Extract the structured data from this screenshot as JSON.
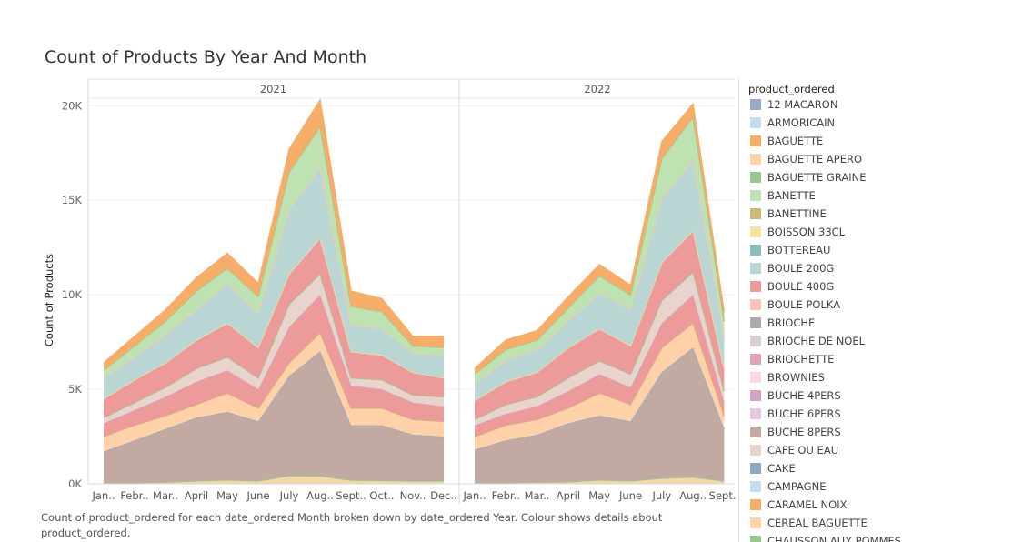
{
  "chart_data": {
    "type": "area",
    "stacked": true,
    "title": "Count of Products By Year And Month",
    "ylabel": "Count of Products",
    "xlabel": "",
    "ylim": [
      0,
      20400
    ],
    "yticks": [
      0,
      5000,
      10000,
      15000,
      20000
    ],
    "ytick_labels": [
      "0K",
      "5K",
      "10K",
      "15K",
      "20K"
    ],
    "grid": true,
    "legend_placement": "right",
    "legend_title": "product_ordered",
    "panels": [
      {
        "year": "2021",
        "months": [
          "Jan..",
          "Febr..",
          "Mar..",
          "April",
          "May",
          "June",
          "July",
          "Aug..",
          "Sept..",
          "Oct..",
          "Nov..",
          "Dec.."
        ],
        "totals": [
          6400,
          7800,
          9200,
          10900,
          12200,
          10600,
          17700,
          20300,
          10200,
          9800,
          7800,
          7800
        ],
        "boundaries": {
          "BAGUETTE": [
            50,
            60,
            80,
            150,
            200,
            150,
            430,
            420,
            190,
            170,
            140,
            150
          ],
          "BOULE 200G": [
            1700,
            2300,
            2900,
            3500,
            3800,
            3300,
            5700,
            7000,
            3100,
            3100,
            2600,
            2500
          ],
          "lower_mix": [
            2500,
            3100,
            3600,
            4200,
            4800,
            4000,
            6400,
            8000,
            4000,
            4000,
            3400,
            3300
          ],
          "BUCHE 8PERS": [
            3200,
            3900,
            4600,
            5400,
            6000,
            5000,
            8300,
            10000,
            5200,
            5000,
            4300,
            4100
          ],
          "CAFE OU EAU": [
            3500,
            4300,
            5100,
            6100,
            6700,
            5600,
            9500,
            11100,
            5600,
            5500,
            4700,
            4600
          ],
          "BOULE 400G": [
            4500,
            5500,
            6400,
            7600,
            8500,
            7200,
            11100,
            13000,
            7000,
            6800,
            5900,
            5600
          ],
          "BAGUETTE APERO": [
            5600,
            6700,
            7900,
            9200,
            10600,
            9000,
            14500,
            16700,
            8400,
            8200,
            6900,
            6800
          ],
          "BANETTE": [
            6000,
            7300,
            8600,
            10200,
            11400,
            9900,
            16500,
            18900,
            9400,
            9100,
            7300,
            7200
          ],
          "BAGUETTE GRAINE": [
            6400,
            7800,
            9200,
            10900,
            12200,
            10600,
            17700,
            20300,
            10200,
            9800,
            7800,
            7800
          ]
        }
      },
      {
        "year": "2022",
        "months": [
          "Jan..",
          "Febr..",
          "Mar..",
          "April",
          "May",
          "June",
          "July",
          "Aug..",
          "Sept.."
        ],
        "totals": [
          6100,
          7600,
          8100,
          9900,
          11600,
          10500,
          18100,
          20100,
          9100
        ],
        "boundaries": {
          "BAGUETTE": [
            50,
            60,
            80,
            100,
            200,
            150,
            300,
            350,
            150
          ],
          "BOULE 200G": [
            1800,
            2300,
            2600,
            3200,
            3600,
            3300,
            5900,
            7200,
            2900
          ],
          "lower_mix": [
            2500,
            3100,
            3400,
            4000,
            4800,
            4200,
            7200,
            8500,
            3600
          ],
          "BUCHE 8PERS": [
            3100,
            3700,
            4100,
            4900,
            5800,
            5100,
            8500,
            10000,
            4300
          ],
          "CAFE OU EAU": [
            3400,
            4200,
            4600,
            5600,
            6500,
            5800,
            9700,
            11200,
            4900
          ],
          "BOULE 400G": [
            4400,
            5400,
            5900,
            7200,
            8200,
            7300,
            11700,
            13400,
            6100
          ],
          "BAGUETTE APERO": [
            5300,
            6500,
            7100,
            8600,
            10100,
            9200,
            15100,
            17100,
            7800
          ],
          "BANETTE": [
            5800,
            7100,
            7600,
            9300,
            11000,
            10000,
            17200,
            19400,
            8600
          ],
          "BAGUETTE GRAINE": [
            6100,
            7600,
            8100,
            9900,
            11600,
            10500,
            18100,
            20100,
            9100
          ]
        }
      }
    ],
    "legend": [
      {
        "name": "12 MACARON",
        "color": "#95abc7"
      },
      {
        "name": "ARMORICAIN",
        "color": "#c3dcf0"
      },
      {
        "name": "BAGUETTE",
        "color": "#f6ad6a"
      },
      {
        "name": "BAGUETTE APERO",
        "color": "#ffd1a8"
      },
      {
        "name": "BAGUETTE GRAINE",
        "color": "#98c98c"
      },
      {
        "name": "BANETTE",
        "color": "#bfe2b2"
      },
      {
        "name": "BANETTINE",
        "color": "#cdb978"
      },
      {
        "name": "BOISSON 33CL",
        "color": "#f7e3a0"
      },
      {
        "name": "BOTTEREAU",
        "color": "#8bbfbb"
      },
      {
        "name": "BOULE 200G",
        "color": "#b9d5d4"
      },
      {
        "name": "BOULE 400G",
        "color": "#ec9a9a"
      },
      {
        "name": "BOULE POLKA",
        "color": "#ffc1bd"
      },
      {
        "name": "BRIOCHE",
        "color": "#b1aaab"
      },
      {
        "name": "BRIOCHE DE NOEL",
        "color": "#d8d0cc"
      },
      {
        "name": "BRIOCHETTE",
        "color": "#e2a3bd"
      },
      {
        "name": "BROWNIES",
        "color": "#fbd6e3"
      },
      {
        "name": "BUCHE 4PERS",
        "color": "#d2a5c5"
      },
      {
        "name": "BUCHE 6PERS",
        "color": "#e6c6e0"
      },
      {
        "name": "BUCHE 8PERS",
        "color": "#c2aaa2"
      },
      {
        "name": "CAFE OU EAU",
        "color": "#e8d4cc"
      },
      {
        "name": "CAKE",
        "color": "#8ea9c8"
      },
      {
        "name": "CAMPAGNE",
        "color": "#c4dcef"
      },
      {
        "name": "CARAMEL NOIX",
        "color": "#f6ad6a"
      },
      {
        "name": "CEREAL BAGUETTE",
        "color": "#ffd1a8"
      },
      {
        "name": "CHAUSSON AUX POMMES",
        "color": "#98c98c"
      }
    ]
  },
  "caption": "Count of product_ordered for each date_ordered Month broken down by date_ordered Year.  Colour shows details about product_ordered."
}
